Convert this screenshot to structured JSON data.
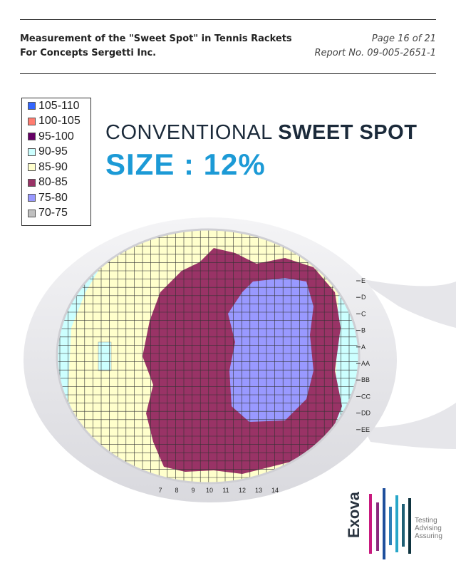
{
  "header": {
    "title_line1": "Measurement of the \"Sweet Spot\" in Tennis Rackets",
    "title_line2": "For Concepts Sergetti Inc.",
    "page": "Page 16 of 21",
    "report": "Report No. 09-005-2651-1"
  },
  "headline": {
    "line1_light": "CONVENTIONAL ",
    "line1_bold": "SWEET SPOT",
    "line2": "SIZE : 12%"
  },
  "legend": [
    {
      "label": "105-110",
      "color": "#3366ff"
    },
    {
      "label": "100-105",
      "color": "#ff7c70"
    },
    {
      "label": "95-100",
      "color": "#660066"
    },
    {
      "label": "90-95",
      "color": "#ccffff"
    },
    {
      "label": "85-90",
      "color": "#ffffcc"
    },
    {
      "label": "80-85",
      "color": "#993366"
    },
    {
      "label": "75-80",
      "color": "#9999ff"
    },
    {
      "label": "70-75",
      "color": "#c0c0c0"
    }
  ],
  "row_labels": [
    "E",
    "D",
    "C",
    "B",
    "A",
    "AA",
    "BB",
    "CC",
    "DD",
    "EE"
  ],
  "col_labels": [
    "7",
    "8",
    "9",
    "10",
    "11",
    "12",
    "13",
    "14"
  ],
  "logo": {
    "name": "Exova",
    "tagline": [
      "Testing",
      "Advising",
      "Assuring"
    ]
  }
}
